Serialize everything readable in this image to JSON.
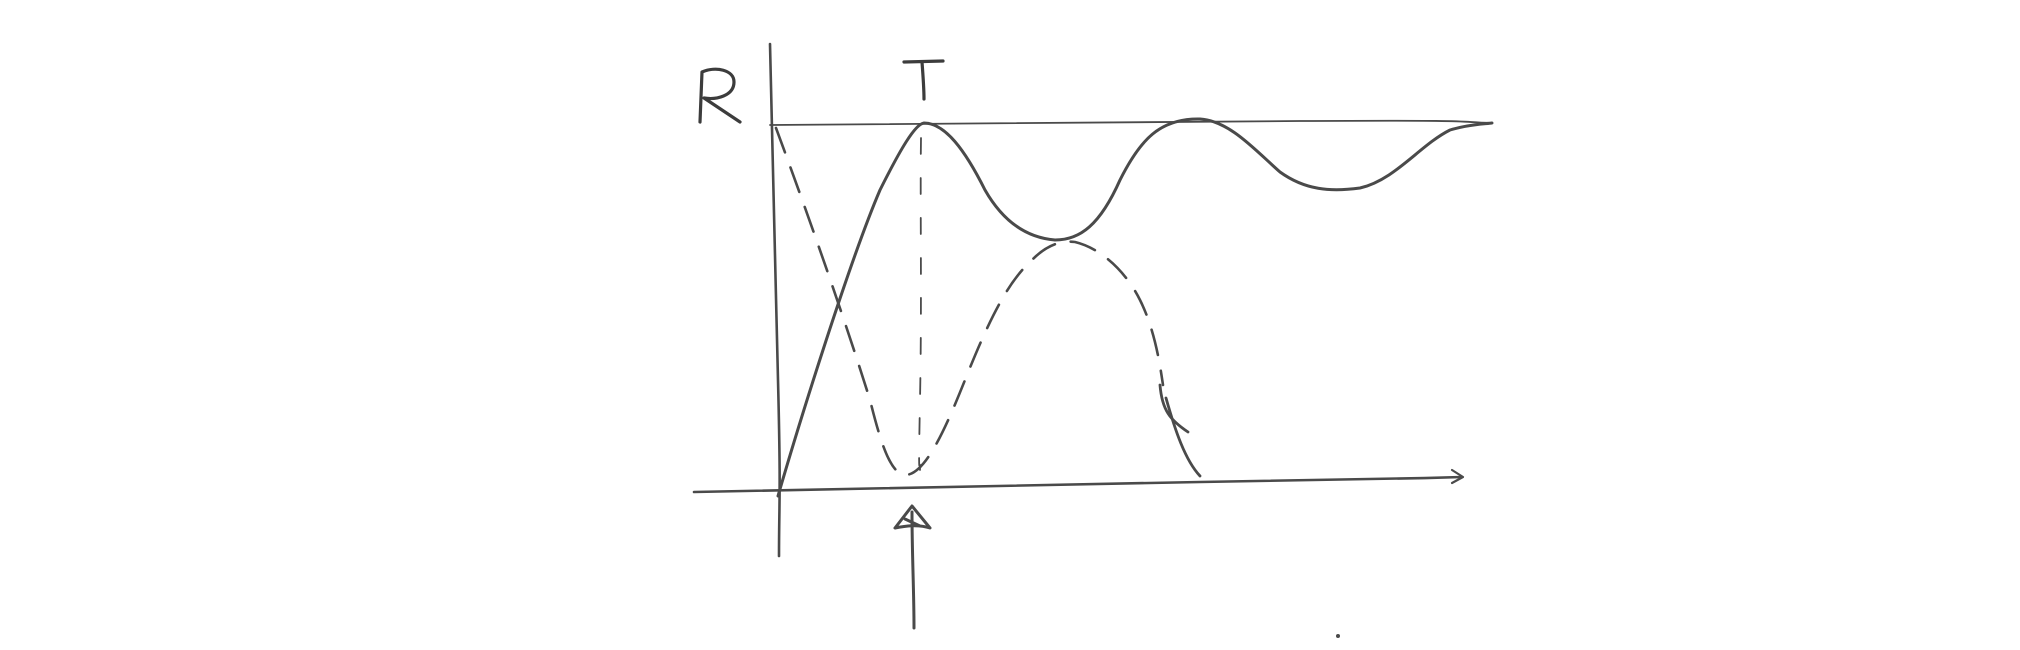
{
  "labels": {
    "y_axis": "R",
    "peak": "T"
  },
  "colors": {
    "ink": "#4a4a4a",
    "background": "#ffffff"
  }
}
